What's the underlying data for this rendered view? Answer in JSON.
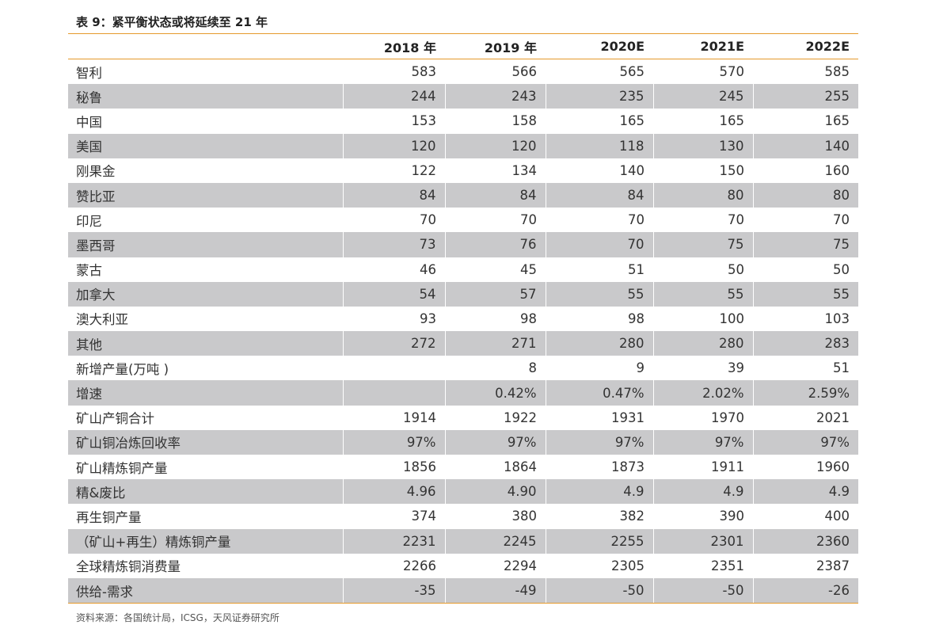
{
  "title": "表 9：紧平衡状态或将延续至 21 年",
  "columns": [
    "",
    "2018 年",
    "2019 年",
    "2020E",
    "2021E",
    "2022E"
  ],
  "rows": [
    {
      "label": "智利",
      "values": [
        "583",
        "566",
        "565",
        "570",
        "585"
      ]
    },
    {
      "label": "秘鲁",
      "values": [
        "244",
        "243",
        "235",
        "245",
        "255"
      ]
    },
    {
      "label": "中国",
      "values": [
        "153",
        "158",
        "165",
        "165",
        "165"
      ]
    },
    {
      "label": "美国",
      "values": [
        "120",
        "120",
        "118",
        "130",
        "140"
      ]
    },
    {
      "label": "刚果金",
      "values": [
        "122",
        "134",
        "140",
        "150",
        "160"
      ]
    },
    {
      "label": "赞比亚",
      "values": [
        "84",
        "84",
        "84",
        "80",
        "80"
      ]
    },
    {
      "label": "印尼",
      "values": [
        "70",
        "70",
        "70",
        "70",
        "70"
      ]
    },
    {
      "label": "墨西哥",
      "values": [
        "73",
        "76",
        "70",
        "75",
        "75"
      ]
    },
    {
      "label": "蒙古",
      "values": [
        "46",
        "45",
        "51",
        "50",
        "50"
      ]
    },
    {
      "label": "加拿大",
      "values": [
        "54",
        "57",
        "55",
        "55",
        "55"
      ]
    },
    {
      "label": "澳大利亚",
      "values": [
        "93",
        "98",
        "98",
        "100",
        "103"
      ]
    },
    {
      "label": "其他",
      "values": [
        "272",
        "271",
        "280",
        "280",
        "283"
      ]
    },
    {
      "label": "新增产量(万吨 )",
      "values": [
        "",
        "8",
        "9",
        "39",
        "51"
      ]
    },
    {
      "label": "增速",
      "values": [
        "",
        "0.42%",
        "0.47%",
        "2.02%",
        "2.59%"
      ]
    },
    {
      "label": "矿山产铜合计",
      "values": [
        "1914",
        "1922",
        "1931",
        "1970",
        "2021"
      ]
    },
    {
      "label": "矿山铜冶炼回收率",
      "values": [
        "97%",
        "97%",
        "97%",
        "97%",
        "97%"
      ]
    },
    {
      "label": "矿山精炼铜产量",
      "values": [
        "1856",
        "1864",
        "1873",
        "1911",
        "1960"
      ]
    },
    {
      "label": "精&废比",
      "values": [
        "4.96",
        "4.90",
        "4.9",
        "4.9",
        "4.9"
      ]
    },
    {
      "label": "再生铜产量",
      "values": [
        "374",
        "380",
        "382",
        "390",
        "400"
      ]
    },
    {
      "label": "（矿山+再生）精炼铜产量",
      "values": [
        "2231",
        "2245",
        "2255",
        "2301",
        "2360"
      ]
    },
    {
      "label": "全球精炼铜消费量",
      "values": [
        "2266",
        "2294",
        "2305",
        "2351",
        "2387"
      ]
    },
    {
      "label": "供给-需求",
      "values": [
        "-35",
        "-49",
        "-50",
        "-50",
        "-26"
      ]
    }
  ],
  "source": "资料来源：各国统计局，ICSG，天风证券研究所",
  "colors": {
    "accent_line": "#e59a2c",
    "row_shade": "#c9c9cb"
  }
}
